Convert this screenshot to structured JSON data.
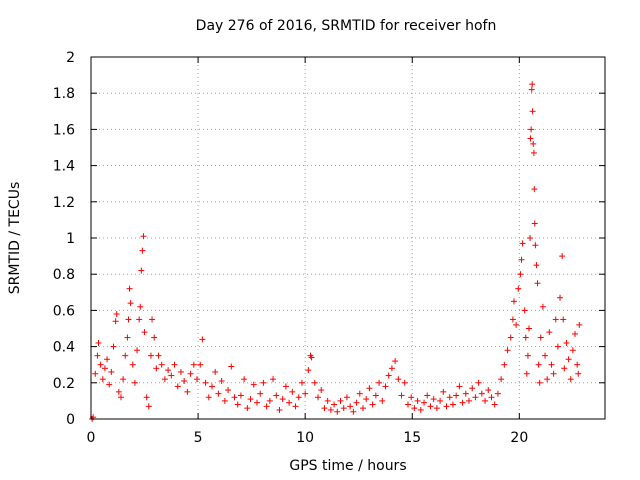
{
  "chart_data": {
    "type": "scatter",
    "title": "Day 276 of 2016, SRMTID for receiver hofn",
    "xlabel": "GPS time / hours",
    "ylabel": "SRMTID / TECUs",
    "xlim": [
      0,
      24
    ],
    "ylim": [
      0,
      2
    ],
    "xticks": [
      0,
      5,
      10,
      15,
      20
    ],
    "xtick_labels": [
      "0",
      "5",
      "10",
      "15",
      "20"
    ],
    "yticks": [
      0,
      0.2,
      0.4,
      0.6,
      0.8,
      1,
      1.2,
      1.4,
      1.6,
      1.8,
      2
    ],
    "ytick_labels": [
      "0",
      "0.2",
      "0.4",
      "0.6",
      "0.8",
      "1",
      "1.2",
      "1.4",
      "1.6",
      "1.8",
      "2"
    ],
    "grid": true,
    "marker": "+",
    "series": [
      {
        "name": "SRMTID",
        "color": "#ff0000",
        "points": [
          [
            0.05,
            0.0
          ],
          [
            0.1,
            0.01
          ],
          [
            0.2,
            0.25
          ],
          [
            0.3,
            0.35
          ],
          [
            0.35,
            0.42
          ],
          [
            0.45,
            0.3
          ],
          [
            0.55,
            0.22
          ],
          [
            0.65,
            0.28
          ],
          [
            0.75,
            0.33
          ],
          [
            0.85,
            0.19
          ],
          [
            0.95,
            0.26
          ],
          [
            1.05,
            0.4
          ],
          [
            1.15,
            0.54
          ],
          [
            1.2,
            0.58
          ],
          [
            1.3,
            0.15
          ],
          [
            1.4,
            0.12
          ],
          [
            1.5,
            0.22
          ],
          [
            1.6,
            0.35
          ],
          [
            1.7,
            0.45
          ],
          [
            1.75,
            0.55
          ],
          [
            1.8,
            0.72
          ],
          [
            1.85,
            0.64
          ],
          [
            1.95,
            0.3
          ],
          [
            2.05,
            0.2
          ],
          [
            2.15,
            0.38
          ],
          [
            2.25,
            0.55
          ],
          [
            2.3,
            0.62
          ],
          [
            2.35,
            0.82
          ],
          [
            2.4,
            0.93
          ],
          [
            2.45,
            1.01
          ],
          [
            2.5,
            0.48
          ],
          [
            2.6,
            0.12
          ],
          [
            2.7,
            0.07
          ],
          [
            2.8,
            0.35
          ],
          [
            2.85,
            0.55
          ],
          [
            2.95,
            0.45
          ],
          [
            3.05,
            0.28
          ],
          [
            3.15,
            0.35
          ],
          [
            3.3,
            0.3
          ],
          [
            3.45,
            0.22
          ],
          [
            3.6,
            0.27
          ],
          [
            3.75,
            0.24
          ],
          [
            3.9,
            0.3
          ],
          [
            4.05,
            0.18
          ],
          [
            4.2,
            0.26
          ],
          [
            4.35,
            0.21
          ],
          [
            4.5,
            0.15
          ],
          [
            4.65,
            0.25
          ],
          [
            4.8,
            0.3
          ],
          [
            4.95,
            0.22
          ],
          [
            5.1,
            0.3
          ],
          [
            5.2,
            0.44
          ],
          [
            5.35,
            0.2
          ],
          [
            5.5,
            0.12
          ],
          [
            5.65,
            0.18
          ],
          [
            5.8,
            0.26
          ],
          [
            5.95,
            0.14
          ],
          [
            6.1,
            0.21
          ],
          [
            6.25,
            0.1
          ],
          [
            6.4,
            0.16
          ],
          [
            6.55,
            0.29
          ],
          [
            6.7,
            0.12
          ],
          [
            6.85,
            0.08
          ],
          [
            7.0,
            0.13
          ],
          [
            7.15,
            0.22
          ],
          [
            7.3,
            0.06
          ],
          [
            7.45,
            0.11
          ],
          [
            7.6,
            0.19
          ],
          [
            7.75,
            0.09
          ],
          [
            7.9,
            0.14
          ],
          [
            8.05,
            0.2
          ],
          [
            8.2,
            0.07
          ],
          [
            8.35,
            0.1
          ],
          [
            8.5,
            0.22
          ],
          [
            8.65,
            0.13
          ],
          [
            8.8,
            0.05
          ],
          [
            8.95,
            0.11
          ],
          [
            9.1,
            0.18
          ],
          [
            9.25,
            0.09
          ],
          [
            9.4,
            0.15
          ],
          [
            9.55,
            0.07
          ],
          [
            9.7,
            0.12
          ],
          [
            9.85,
            0.2
          ],
          [
            10.0,
            0.14
          ],
          [
            10.15,
            0.27
          ],
          [
            10.25,
            0.35
          ],
          [
            10.3,
            0.34
          ],
          [
            10.45,
            0.2
          ],
          [
            10.6,
            0.12
          ],
          [
            10.75,
            0.16
          ],
          [
            10.9,
            0.06
          ],
          [
            11.05,
            0.1
          ],
          [
            11.2,
            0.05
          ],
          [
            11.35,
            0.08
          ],
          [
            11.5,
            0.04
          ],
          [
            11.65,
            0.1
          ],
          [
            11.8,
            0.06
          ],
          [
            11.95,
            0.12
          ],
          [
            12.1,
            0.07
          ],
          [
            12.25,
            0.04
          ],
          [
            12.4,
            0.09
          ],
          [
            12.55,
            0.14
          ],
          [
            12.7,
            0.06
          ],
          [
            12.85,
            0.11
          ],
          [
            13.0,
            0.17
          ],
          [
            13.15,
            0.08
          ],
          [
            13.3,
            0.13
          ],
          [
            13.45,
            0.2
          ],
          [
            13.6,
            0.1
          ],
          [
            13.75,
            0.18
          ],
          [
            13.9,
            0.24
          ],
          [
            14.05,
            0.28
          ],
          [
            14.2,
            0.32
          ],
          [
            14.35,
            0.22
          ],
          [
            14.5,
            0.13
          ],
          [
            14.65,
            0.2
          ],
          [
            14.8,
            0.08
          ],
          [
            14.95,
            0.12
          ],
          [
            15.1,
            0.06
          ],
          [
            15.25,
            0.1
          ],
          [
            15.4,
            0.05
          ],
          [
            15.55,
            0.09
          ],
          [
            15.7,
            0.13
          ],
          [
            15.85,
            0.07
          ],
          [
            16.0,
            0.11
          ],
          [
            16.15,
            0.06
          ],
          [
            16.3,
            0.1
          ],
          [
            16.45,
            0.15
          ],
          [
            16.6,
            0.07
          ],
          [
            16.75,
            0.12
          ],
          [
            16.9,
            0.08
          ],
          [
            17.05,
            0.13
          ],
          [
            17.2,
            0.18
          ],
          [
            17.35,
            0.09
          ],
          [
            17.5,
            0.14
          ],
          [
            17.65,
            0.1
          ],
          [
            17.8,
            0.17
          ],
          [
            17.95,
            0.12
          ],
          [
            18.1,
            0.2
          ],
          [
            18.25,
            0.14
          ],
          [
            18.4,
            0.1
          ],
          [
            18.55,
            0.16
          ],
          [
            18.7,
            0.12
          ],
          [
            18.85,
            0.08
          ],
          [
            19.0,
            0.14
          ],
          [
            19.15,
            0.22
          ],
          [
            19.3,
            0.3
          ],
          [
            19.45,
            0.38
          ],
          [
            19.6,
            0.45
          ],
          [
            19.7,
            0.55
          ],
          [
            19.75,
            0.65
          ],
          [
            19.85,
            0.52
          ],
          [
            19.95,
            0.72
          ],
          [
            20.05,
            0.8
          ],
          [
            20.1,
            0.88
          ],
          [
            20.15,
            0.97
          ],
          [
            20.25,
            0.6
          ],
          [
            20.3,
            0.45
          ],
          [
            20.35,
            0.25
          ],
          [
            20.4,
            0.35
          ],
          [
            20.45,
            0.5
          ],
          [
            20.5,
            1.0
          ],
          [
            20.52,
            1.55
          ],
          [
            20.55,
            1.6
          ],
          [
            20.58,
            1.82
          ],
          [
            20.6,
            1.85
          ],
          [
            20.62,
            1.7
          ],
          [
            20.65,
            1.52
          ],
          [
            20.68,
            1.47
          ],
          [
            20.7,
            1.27
          ],
          [
            20.72,
            1.08
          ],
          [
            20.75,
            0.96
          ],
          [
            20.8,
            0.85
          ],
          [
            20.85,
            0.75
          ],
          [
            20.9,
            0.3
          ],
          [
            20.95,
            0.2
          ],
          [
            21.0,
            0.45
          ],
          [
            21.1,
            0.62
          ],
          [
            21.2,
            0.35
          ],
          [
            21.3,
            0.22
          ],
          [
            21.4,
            0.48
          ],
          [
            21.5,
            0.3
          ],
          [
            21.6,
            0.25
          ],
          [
            21.7,
            0.55
          ],
          [
            21.8,
            0.4
          ],
          [
            21.9,
            0.67
          ],
          [
            22.0,
            0.9
          ],
          [
            22.05,
            0.55
          ],
          [
            22.1,
            0.28
          ],
          [
            22.2,
            0.42
          ],
          [
            22.3,
            0.33
          ],
          [
            22.4,
            0.22
          ],
          [
            22.5,
            0.38
          ],
          [
            22.6,
            0.47
          ],
          [
            22.7,
            0.3
          ],
          [
            22.75,
            0.25
          ],
          [
            22.8,
            0.52
          ]
        ]
      }
    ]
  }
}
